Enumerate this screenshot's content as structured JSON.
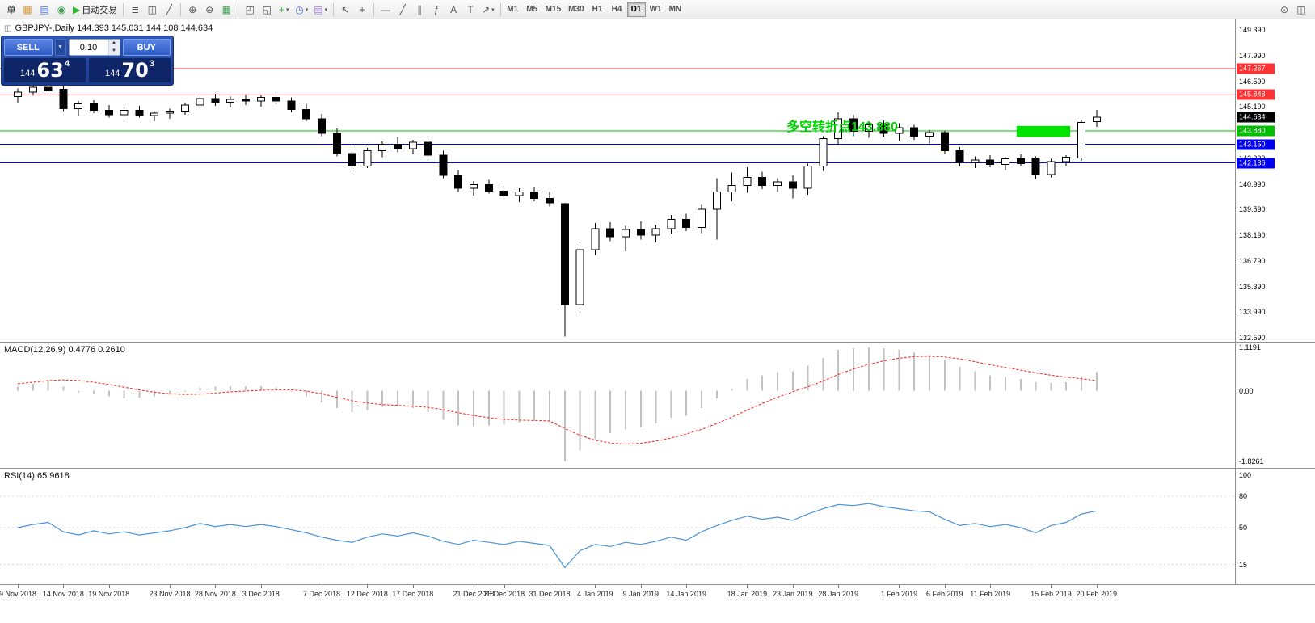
{
  "toolbar": {
    "left_items": [
      {
        "name": "new-order-button",
        "label": "单"
      },
      {
        "name": "new-chart-icon",
        "glyph": "▦",
        "color": "#d79a33"
      },
      {
        "name": "profiles-icon",
        "glyph": "▤",
        "color": "#4a6fd0"
      },
      {
        "name": "data-window-icon",
        "glyph": "◉",
        "color": "#3f9e4f"
      },
      {
        "name": "autotrading-button",
        "glyph": "▶",
        "color": "#2db52d",
        "label": "自动交易"
      },
      {
        "separator": true
      },
      {
        "name": "bar-chart-icon",
        "glyph": "≣",
        "color": "#555555"
      },
      {
        "name": "candlestick-chart-icon",
        "glyph": "◫",
        "color": "#555555"
      },
      {
        "name": "line-chart-icon",
        "glyph": "╱",
        "color": "#555555"
      },
      {
        "separator": true
      },
      {
        "name": "zoom-in-icon",
        "glyph": "⊕",
        "color": "#555555"
      },
      {
        "name": "zoom-out-icon",
        "glyph": "⊖",
        "color": "#555555"
      },
      {
        "name": "grid-icon",
        "glyph": "▦",
        "color": "#3f9e4f"
      },
      {
        "separator": true
      },
      {
        "name": "tile-windows-icon",
        "glyph": "◰",
        "color": "#555555"
      },
      {
        "name": "cascade-windows-icon",
        "glyph": "◱",
        "color": "#555555"
      },
      {
        "name": "add-indicator-button",
        "glyph": "+",
        "color": "#2db52d",
        "caret": true
      },
      {
        "name": "periods-button",
        "glyph": "◷",
        "color": "#4a6fd0",
        "caret": true
      },
      {
        "name": "templates-button",
        "glyph": "▤",
        "color": "#9a7ad0",
        "caret": true
      },
      {
        "separator": true
      },
      {
        "name": "cursor-icon",
        "glyph": "↖",
        "color": "#555555"
      },
      {
        "name": "crosshair-icon",
        "glyph": "+",
        "color": "#555555"
      },
      {
        "separator": true
      },
      {
        "name": "horizontal-line-icon",
        "glyph": "—",
        "color": "#555555"
      },
      {
        "name": "trendline-icon",
        "glyph": "╱",
        "color": "#555555"
      },
      {
        "name": "equidistant-channel-icon",
        "glyph": "∥",
        "color": "#555555"
      },
      {
        "name": "fibonacci-icon",
        "glyph": "ƒ",
        "color": "#555555"
      },
      {
        "name": "text-icon",
        "glyph": "A",
        "color": "#555555"
      },
      {
        "name": "text-label-icon",
        "glyph": "T",
        "color": "#555555"
      },
      {
        "name": "arrows-button",
        "glyph": "↗",
        "color": "#555555",
        "caret": true
      },
      {
        "separator": true
      }
    ],
    "timeframes": {
      "items": [
        "M1",
        "M5",
        "M15",
        "M30",
        "H1",
        "H4",
        "D1",
        "W1",
        "MN"
      ],
      "active": "D1"
    },
    "right_items": [
      {
        "name": "search-icon",
        "glyph": "⊙",
        "color": "#555555"
      },
      {
        "name": "new-window-icon",
        "glyph": "◫",
        "color": "#555555"
      }
    ],
    "dropdown_caret_glyph": "▾"
  },
  "main_chart": {
    "header_icon_glyph": "◫",
    "header_text": "GBPJPY-,Daily 144.393 145.031 144.108 144.634",
    "annotation": {
      "text": "多空转折点143.880",
      "color": "#00d200"
    },
    "axis_labels": [
      "149.390",
      "147.990",
      "146.590",
      "145.190",
      "143.790",
      "142.390",
      "140.990",
      "139.590",
      "138.190",
      "136.790",
      "135.390",
      "133.990",
      "132.590"
    ]
  },
  "one_click": {
    "sell_label": "SELL",
    "buy_label": "BUY",
    "volume": "0.10",
    "menu_caret_glyph": "▼",
    "spin_up_glyph": "▲",
    "spin_down_glyph": "▼",
    "sell_price": {
      "small": "144",
      "big": "63",
      "sup": "4"
    },
    "buy_price": {
      "small": "144",
      "big": "70",
      "sup": "3"
    }
  },
  "macd_pane": {
    "header_text": "MACD(12,26,9) 0.4776 0.2610",
    "axis_labels": [
      "1.1191",
      "0.00",
      "-1.8261"
    ]
  },
  "rsi_pane": {
    "header_text": "RSI(14) 65.9618",
    "axis_labels": [
      "100",
      "80",
      "50",
      "15"
    ]
  },
  "time_axis": {
    "labels": [
      {
        "i": 0,
        "t": "9 Nov 2018"
      },
      {
        "i": 3,
        "t": "14 Nov 2018"
      },
      {
        "i": 6,
        "t": "19 Nov 2018"
      },
      {
        "i": 10,
        "t": "23 Nov 2018"
      },
      {
        "i": 13,
        "t": "28 Nov 2018"
      },
      {
        "i": 16,
        "t": "3 Dec 2018"
      },
      {
        "i": 20,
        "t": "7 Dec 2018"
      },
      {
        "i": 23,
        "t": "12 Dec 2018"
      },
      {
        "i": 26,
        "t": "17 Dec 2018"
      },
      {
        "i": 30,
        "t": "21 Dec 2018"
      },
      {
        "i": 32,
        "t": "26 Dec 2018"
      },
      {
        "i": 35,
        "t": "31 Dec 2018"
      },
      {
        "i": 38,
        "t": "4 Jan 2019"
      },
      {
        "i": 41,
        "t": "9 Jan 2019"
      },
      {
        "i": 44,
        "t": "14 Jan 2019"
      },
      {
        "i": 48,
        "t": "18 Jan 2019"
      },
      {
        "i": 51,
        "t": "23 Jan 2019"
      },
      {
        "i": 54,
        "t": "28 Jan 2019"
      },
      {
        "i": 58,
        "t": "1 Feb 2019"
      },
      {
        "i": 61,
        "t": "6 Feb 2019"
      },
      {
        "i": 64,
        "t": "11 Feb 2019"
      },
      {
        "i": 68,
        "t": "15 Feb 2019"
      },
      {
        "i": 71,
        "t": "20 Feb 2019"
      }
    ]
  },
  "chart_data": [
    {
      "type": "candlestick",
      "title": "GBPJPY- Daily",
      "ohlc_open_high_low_close": true,
      "ylim": [
        132.59,
        149.39
      ],
      "ohlc": [
        [
          145.75,
          146.2,
          145.4,
          146.0
        ],
        [
          146.0,
          146.4,
          145.8,
          146.25
        ],
        [
          146.25,
          146.45,
          145.9,
          146.05
        ],
        [
          146.15,
          146.3,
          144.95,
          145.1
        ],
        [
          145.1,
          145.5,
          144.7,
          145.35
        ],
        [
          145.35,
          145.55,
          144.85,
          145.0
        ],
        [
          145.0,
          145.3,
          144.6,
          144.75
        ],
        [
          144.75,
          145.15,
          144.5,
          145.0
        ],
        [
          145.0,
          145.25,
          144.6,
          144.72
        ],
        [
          144.72,
          144.95,
          144.4,
          144.85
        ],
        [
          144.85,
          145.1,
          144.55,
          144.95
        ],
        [
          144.95,
          145.4,
          144.75,
          145.3
        ],
        [
          145.3,
          145.8,
          145.1,
          145.65
        ],
        [
          145.65,
          145.9,
          145.25,
          145.45
        ],
        [
          145.45,
          145.75,
          145.15,
          145.6
        ],
        [
          145.6,
          145.88,
          145.3,
          145.5
        ],
        [
          145.5,
          145.85,
          145.2,
          145.7
        ],
        [
          145.7,
          145.86,
          145.35,
          145.5
        ],
        [
          145.5,
          145.7,
          144.9,
          145.05
        ],
        [
          145.05,
          145.35,
          144.4,
          144.55
        ],
        [
          144.55,
          144.8,
          143.6,
          143.75
        ],
        [
          143.75,
          144.0,
          142.5,
          142.65
        ],
        [
          142.65,
          143.0,
          141.8,
          141.95
        ],
        [
          141.95,
          142.95,
          141.85,
          142.8
        ],
        [
          142.8,
          143.3,
          142.45,
          143.15
        ],
        [
          143.15,
          143.55,
          142.7,
          142.9
        ],
        [
          142.9,
          143.4,
          142.6,
          143.25
        ],
        [
          143.25,
          143.5,
          142.4,
          142.55
        ],
        [
          142.55,
          142.8,
          141.3,
          141.45
        ],
        [
          141.45,
          141.75,
          140.55,
          140.75
        ],
        [
          140.75,
          141.15,
          140.35,
          140.95
        ],
        [
          140.95,
          141.2,
          140.45,
          140.6
        ],
        [
          140.6,
          140.9,
          140.1,
          140.35
        ],
        [
          140.35,
          140.75,
          140.0,
          140.55
        ],
        [
          140.55,
          140.8,
          140.05,
          140.2
        ],
        [
          140.2,
          140.55,
          139.75,
          139.95
        ],
        [
          139.9,
          139.95,
          132.65,
          134.4
        ],
        [
          134.4,
          137.65,
          133.95,
          137.4
        ],
        [
          137.4,
          138.85,
          137.1,
          138.55
        ],
        [
          138.55,
          138.9,
          137.85,
          138.1
        ],
        [
          138.1,
          138.7,
          137.3,
          138.5
        ],
        [
          138.5,
          138.95,
          137.95,
          138.2
        ],
        [
          138.2,
          138.75,
          137.8,
          138.55
        ],
        [
          138.55,
          139.3,
          138.25,
          139.05
        ],
        [
          139.05,
          139.35,
          138.4,
          138.6
        ],
        [
          138.6,
          139.85,
          138.3,
          139.6
        ],
        [
          139.6,
          141.3,
          137.95,
          140.55
        ],
        [
          140.55,
          141.6,
          140.05,
          140.9
        ],
        [
          140.9,
          141.9,
          140.5,
          141.35
        ],
        [
          141.35,
          141.65,
          140.7,
          140.9
        ],
        [
          140.9,
          141.3,
          140.55,
          141.1
        ],
        [
          141.1,
          141.45,
          140.2,
          140.75
        ],
        [
          140.75,
          142.1,
          140.4,
          141.95
        ],
        [
          141.95,
          143.6,
          141.7,
          143.45
        ],
        [
          143.45,
          144.9,
          143.1,
          144.55
        ],
        [
          144.55,
          144.75,
          143.6,
          143.85
        ],
        [
          143.85,
          144.4,
          143.5,
          144.2
        ],
        [
          144.2,
          144.45,
          143.55,
          143.75
        ],
        [
          143.75,
          144.3,
          143.35,
          144.05
        ],
        [
          144.05,
          144.2,
          143.4,
          143.6
        ],
        [
          143.6,
          143.95,
          143.2,
          143.8
        ],
        [
          143.8,
          143.9,
          142.65,
          142.8
        ],
        [
          142.8,
          143.0,
          141.95,
          142.15
        ],
        [
          142.15,
          142.5,
          141.85,
          142.3
        ],
        [
          142.3,
          142.55,
          141.9,
          142.05
        ],
        [
          142.05,
          142.45,
          141.75,
          142.35
        ],
        [
          142.35,
          142.6,
          141.95,
          142.1
        ],
        [
          142.4,
          142.5,
          141.25,
          141.5
        ],
        [
          141.5,
          142.35,
          141.35,
          142.2
        ],
        [
          142.2,
          142.55,
          141.95,
          142.45
        ],
        [
          142.4,
          144.5,
          142.25,
          144.35
        ],
        [
          144.393,
          145.031,
          144.108,
          144.634
        ]
      ],
      "levels": [
        {
          "label": "147.267",
          "price": 147.267,
          "color": "#ff3333",
          "line": true
        },
        {
          "label": "145.848",
          "price": 145.848,
          "color": "#ff3333",
          "line": true
        },
        {
          "label": "144.634",
          "price": 144.634,
          "color": "#000000",
          "line": false
        },
        {
          "label": "143.880",
          "price": 143.88,
          "color": "#00c000",
          "line": true
        },
        {
          "label": "143.150",
          "price": 143.15,
          "color": "#0000ee",
          "line": true
        },
        {
          "label": "142.136",
          "price": 142.136,
          "color": "#0000ee",
          "line": true
        }
      ],
      "rect": {
        "i1": 66,
        "i2": 69,
        "p_top": 144.15,
        "p_bottom": 143.55,
        "color": "#00e400"
      },
      "last_price": 144.634
    },
    {
      "type": "bar",
      "name": "MACD(12,26,9)",
      "ylim": [
        -1.8261,
        1.1191
      ],
      "values": [
        0.1,
        0.18,
        0.25,
        0.1,
        -0.05,
        -0.08,
        -0.15,
        -0.2,
        -0.18,
        -0.15,
        -0.1,
        -0.02,
        0.08,
        0.1,
        0.12,
        0.1,
        0.12,
        0.08,
        -0.02,
        -0.15,
        -0.3,
        -0.45,
        -0.55,
        -0.5,
        -0.42,
        -0.4,
        -0.45,
        -0.55,
        -0.75,
        -0.9,
        -0.92,
        -0.9,
        -0.88,
        -0.82,
        -0.78,
        -0.8,
        -1.8261,
        -1.55,
        -1.25,
        -1.1,
        -1.0,
        -0.95,
        -0.85,
        -0.7,
        -0.65,
        -0.45,
        -0.2,
        0.05,
        0.3,
        0.4,
        0.48,
        0.5,
        0.65,
        0.85,
        1.05,
        1.1,
        1.1191,
        1.1,
        1.05,
        0.98,
        0.92,
        0.8,
        0.62,
        0.5,
        0.4,
        0.35,
        0.3,
        0.22,
        0.2,
        0.22,
        0.38,
        0.4776
      ],
      "signal": [
        0.18,
        0.22,
        0.26,
        0.28,
        0.26,
        0.22,
        0.16,
        0.09,
        0.02,
        -0.04,
        -0.08,
        -0.1,
        -0.09,
        -0.06,
        -0.03,
        -0.01,
        0.01,
        0.02,
        0.02,
        -0.01,
        -0.08,
        -0.17,
        -0.26,
        -0.32,
        -0.36,
        -0.38,
        -0.4,
        -0.43,
        -0.49,
        -0.57,
        -0.64,
        -0.7,
        -0.74,
        -0.76,
        -0.77,
        -0.78,
        -0.98,
        -1.15,
        -1.28,
        -1.35,
        -1.38,
        -1.36,
        -1.3,
        -1.22,
        -1.12,
        -1.0,
        -0.85,
        -0.68,
        -0.5,
        -0.33,
        -0.17,
        -0.03,
        0.1,
        0.25,
        0.42,
        0.56,
        0.68,
        0.77,
        0.84,
        0.88,
        0.89,
        0.87,
        0.82,
        0.75,
        0.67,
        0.6,
        0.53,
        0.46,
        0.4,
        0.35,
        0.31,
        0.261
      ],
      "current_values": [
        0.4776,
        0.261
      ]
    },
    {
      "type": "line",
      "name": "RSI(14)",
      "ylim": [
        0,
        100
      ],
      "levels": [
        80,
        50,
        15
      ],
      "values": [
        50,
        53,
        55,
        46,
        43,
        47,
        44,
        46,
        43,
        45,
        47,
        50,
        54,
        51,
        53,
        51,
        53,
        51,
        48,
        45,
        41,
        38,
        36,
        41,
        44,
        42,
        45,
        42,
        37,
        34,
        38,
        36,
        34,
        37,
        35,
        33,
        12,
        28,
        34,
        32,
        36,
        34,
        37,
        41,
        38,
        46,
        52,
        57,
        61,
        58,
        60,
        57,
        63,
        68,
        72,
        71,
        73,
        70,
        68,
        66,
        65,
        58,
        52,
        54,
        51,
        53,
        50,
        45,
        52,
        55,
        63,
        65.96
      ],
      "current_value": 65.9618
    }
  ]
}
